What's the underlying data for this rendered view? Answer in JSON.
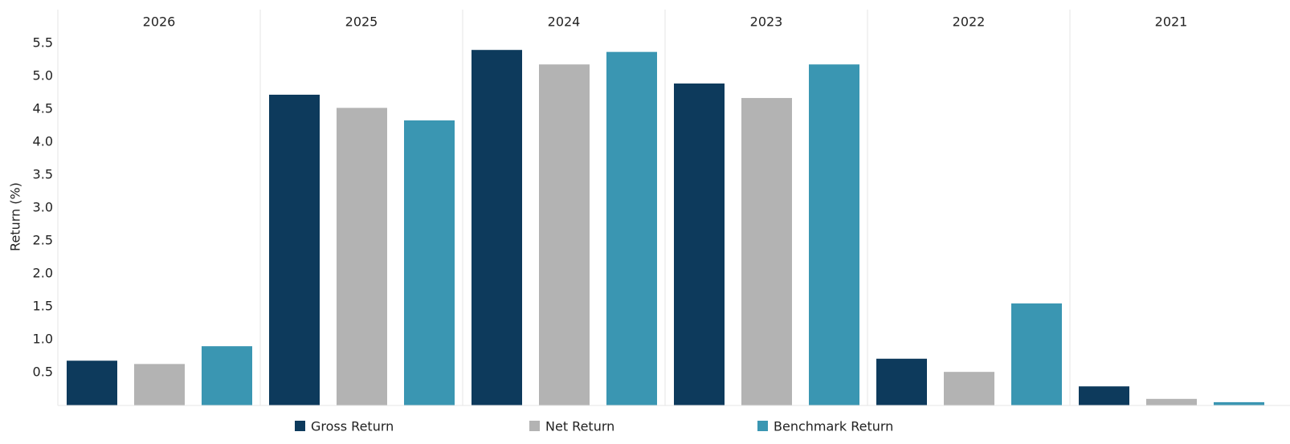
{
  "chart_data": {
    "type": "bar",
    "y_label": "Return (%)",
    "categories": [
      "2026",
      "2025",
      "2024",
      "2023",
      "2022",
      "2021"
    ],
    "series": [
      {
        "name": "Gross Return",
        "color": "#0d3a5c",
        "values": [
          0.68,
          4.72,
          5.4,
          4.89,
          0.71,
          0.29
        ]
      },
      {
        "name": "Net Return",
        "color": "#b3b3b3",
        "values": [
          0.63,
          4.52,
          5.18,
          4.67,
          0.51,
          0.1
        ]
      },
      {
        "name": "Benchmark Return",
        "color": "#3a96b2",
        "values": [
          0.9,
          4.33,
          5.37,
          5.18,
          1.55,
          0.05
        ]
      }
    ],
    "ylim": [
      0,
      6
    ],
    "yticks": [
      0.5,
      {
        "value": 1,
        "label": "1.0"
      },
      1.5,
      {
        "value": 2,
        "label": "2.0"
      },
      2.5,
      {
        "value": 3,
        "label": "3.0"
      },
      3.5,
      {
        "value": 4,
        "label": "4.0"
      },
      4.5,
      {
        "value": 5,
        "label": "5.0"
      },
      5.5
    ],
    "legend": "bottom"
  }
}
